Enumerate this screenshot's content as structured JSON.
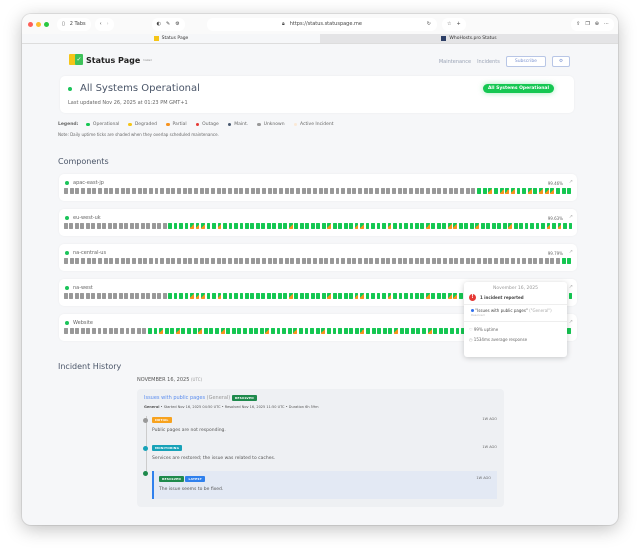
{
  "browser": {
    "tabs_count": "2 Tabs",
    "url": "https://status.statuspage.me",
    "tabs": [
      {
        "label": "Status Page",
        "active": true
      },
      {
        "label": "WhoHosts.pro Status",
        "active": false
      }
    ]
  },
  "header": {
    "logo_text": "Status Page",
    "logo_superscript": "hosted",
    "nav": {
      "maintenance": "Maintenance",
      "incidents": "Incidents",
      "subscribe": "Subscribe",
      "settings_icon": "gear-icon"
    }
  },
  "hero": {
    "title": "All Systems Operational",
    "last_updated": "Last updated Nov 26, 2025 at 01:23 PM GMT+1",
    "badge": "All Systems Operational"
  },
  "legend": {
    "label": "Legend:",
    "items": [
      {
        "label": "Operational",
        "color": "#15c752"
      },
      {
        "label": "Degraded",
        "color": "#f5c518"
      },
      {
        "label": "Partial",
        "color": "#f7931e"
      },
      {
        "label": "Outage",
        "color": "#e53935"
      },
      {
        "label": "Maint.",
        "color": "#4a5a70"
      },
      {
        "label": "Unknown",
        "color": "#999999"
      },
      {
        "label": "Active Incident",
        "color": "#fbe9d6"
      }
    ],
    "note": "Note: Daily uptime ticks are shaded when they overlap scheduled maintenance."
  },
  "components": {
    "title": "Components",
    "items": [
      {
        "name": "apac-east-jp",
        "uptime": "99.46%",
        "ticks": "gggggggggggggggggggggggggggggggggggggggggggggggggggggggggggggggggggggggggoopopppoopopppooo"
      },
      {
        "name": "eu-west-uk",
        "uptime": "99.63%",
        "ticks": "gggggggggggggggggggoooopppoopoooooooooooopoooooopooooppoooopoooooopoooppooopooooopoooooopopoo"
      },
      {
        "name": "na-central-us",
        "uptime": "99.79%",
        "ticks": "ggggggggggggggggggggggggggggggggggggggggggggggggggggggggggggggggggggggggggggggggggggggggoo"
      },
      {
        "name": "na-west",
        "uptime": "",
        "ticks": "gggggggggggggggggggoooopppoopoooooooooooopoooooopooooppoooopoooooopoooppooopooooopoooooopopoo"
      },
      {
        "name": "Website",
        "uptime": "",
        "ticks": "gggggggggggggggoopoopooopooopooooooopoooopoooopoooooopooooopooooopoooooopppoopoopoopopoopoo"
      }
    ]
  },
  "tooltip": {
    "date": "November 16, 2025",
    "incidents": "1 incident reported",
    "incident_title": "\"Issues with public pages\"",
    "incident_scope": "(\"General\")",
    "incident_status": "Resolved",
    "uptime": "99% uptime",
    "response": "1534ms average response"
  },
  "history": {
    "title": "Incident History",
    "date": "NOVEMBER 16, 2025",
    "tz": "(UTC)",
    "incident": {
      "title": "Issues with public pages",
      "scope": "(General)",
      "status": "RESOLVED",
      "meta_scope": "General",
      "meta": " • Started Nov 16, 2025 04:50 UTC • Resolved Nov 16, 2025 11:50 UTC • Duration 6h 59m",
      "updates": [
        {
          "badge": "INITIAL",
          "badge_color": "#f7a21e",
          "text": "Public pages are not responding.",
          "ago": "1W AGO"
        },
        {
          "badge": "MONITORING",
          "badge_color": "#17a2b8",
          "text": "Services are restored; the issue was related to caches.",
          "ago": "1W AGO"
        },
        {
          "badge": "RESOLVED",
          "badge_color": "#1e8a4c",
          "badge2": "LATEST",
          "text": "The issue seems to be fixed.",
          "ago": "1W AGO"
        }
      ]
    }
  }
}
